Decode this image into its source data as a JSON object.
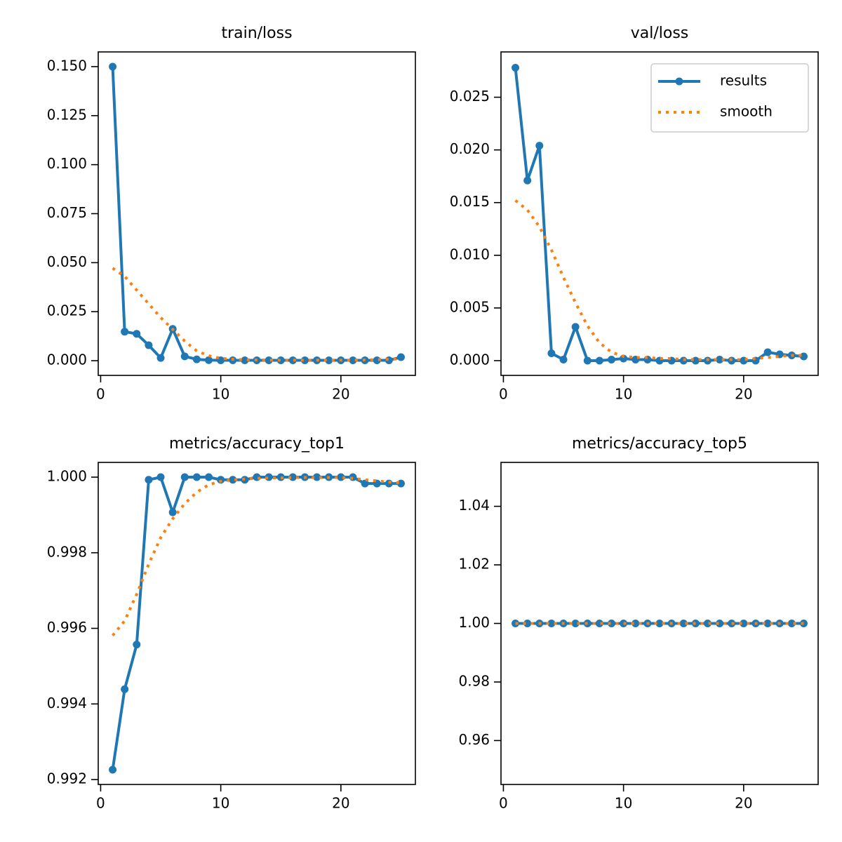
{
  "chart_data": [
    {
      "type": "line",
      "title": "train/loss",
      "x": [
        1,
        2,
        3,
        4,
        5,
        6,
        7,
        8,
        9,
        10,
        11,
        12,
        13,
        14,
        15,
        16,
        17,
        18,
        19,
        20,
        21,
        22,
        23,
        24,
        25
      ],
      "xlim": [
        -0.2,
        26.2
      ],
      "xticks": [
        0,
        10,
        20
      ],
      "ylim": [
        -0.0075,
        0.1575
      ],
      "yticks": [
        {
          "value": 0,
          "label": "0.000"
        },
        0.025,
        {
          "value": 0.05,
          "label": "0.050"
        },
        0.075,
        {
          "value": 0.1,
          "label": "0.100"
        },
        0.125,
        {
          "value": 0.15,
          "label": "0.150"
        }
      ],
      "series": [
        {
          "color": "#1f77b4",
          "linestyle": "solid",
          "marker": "o",
          "values": [
            0.15,
            0.0148,
            0.0137,
            0.0079,
            0.0014,
            0.0162,
            0.0022,
            0.0007,
            0.0003,
            0.0002,
            0.0002,
            0.0002,
            0.0002,
            0.0002,
            0.0002,
            0.0002,
            0.0002,
            0.0002,
            0.0002,
            0.0002,
            0.0002,
            0.0002,
            0.0002,
            0.0002,
            0.0018
          ]
        },
        {
          "color": "#ff7f0e",
          "linestyle": "dotted",
          "values": [
            0.0472,
            0.043,
            0.036,
            0.029,
            0.022,
            0.016,
            0.01,
            0.005,
            0.0025,
            0.0012,
            0.0007,
            0.0005,
            0.0004,
            0.0003,
            0.0003,
            0.0003,
            0.0003,
            0.0003,
            0.0003,
            0.0003,
            0.0003,
            0.0004,
            0.0005,
            0.0007,
            0.001
          ]
        }
      ]
    },
    {
      "type": "line",
      "title": "val/loss",
      "x": [
        1,
        2,
        3,
        4,
        5,
        6,
        7,
        8,
        9,
        10,
        11,
        12,
        13,
        14,
        15,
        16,
        17,
        18,
        19,
        20,
        21,
        22,
        23,
        24,
        25
      ],
      "xlim": [
        -0.2,
        26.2
      ],
      "xticks": [
        0,
        10,
        20
      ],
      "ylim": [
        -0.0014,
        0.0293
      ],
      "yticks": [
        {
          "value": 0,
          "label": "0.000"
        },
        0.005,
        {
          "value": 0.01,
          "label": "0.010"
        },
        0.015,
        {
          "value": 0.02,
          "label": "0.020"
        },
        0.025
      ],
      "legend": "upper right",
      "series": [
        {
          "name": "results",
          "color": "#1f77b4",
          "linestyle": "solid",
          "marker": "o",
          "values": [
            0.0278,
            0.0171,
            0.0204,
            0.0007,
            0.0001,
            0.0032,
            0.0,
            0.0,
            0.0001,
            0.0002,
            0.0001,
            0.0001,
            0.0,
            0.0,
            0.0,
            0.0,
            0.0,
            0.0001,
            0.0,
            0.0,
            0.0,
            0.0008,
            0.0006,
            0.0005,
            0.0004
          ]
        },
        {
          "name": "smooth",
          "color": "#ff7f0e",
          "linestyle": "dotted",
          "values": [
            0.0152,
            0.0143,
            0.0127,
            0.0105,
            0.0079,
            0.0055,
            0.0033,
            0.0017,
            0.0008,
            0.0004,
            0.0003,
            0.0003,
            0.0002,
            0.0002,
            0.0001,
            0.0001,
            0.0001,
            0.0001,
            0.0001,
            0.0001,
            0.0002,
            0.0003,
            0.0004,
            0.0005,
            0.0005
          ]
        }
      ]
    },
    {
      "type": "line",
      "title": "metrics/accuracy_top1",
      "x": [
        1,
        2,
        3,
        4,
        5,
        6,
        7,
        8,
        9,
        10,
        11,
        12,
        13,
        14,
        15,
        16,
        17,
        18,
        19,
        20,
        21,
        22,
        23,
        24,
        25
      ],
      "xlim": [
        -0.2,
        26.2
      ],
      "xticks": [
        0,
        10,
        20
      ],
      "ylim": [
        0.99187,
        1.00039
      ],
      "yticks": [
        0.992,
        0.994,
        0.996,
        0.998,
        {
          "value": 1,
          "label": "1.000"
        }
      ],
      "series": [
        {
          "color": "#1f77b4",
          "linestyle": "solid",
          "marker": "o",
          "values": [
            0.99226,
            0.99439,
            0.99557,
            0.99993,
            1.0,
            0.99907,
            1.0,
            1.0,
            1.0,
            0.99993,
            0.99993,
            0.99993,
            1.0,
            1.0,
            1.0,
            1.0,
            1.0,
            1.0,
            1.0,
            1.0,
            1.0,
            0.99983,
            0.99983,
            0.99983,
            0.99983
          ]
        },
        {
          "color": "#ff7f0e",
          "linestyle": "dotted",
          "values": [
            0.99581,
            0.9962,
            0.9969,
            0.9977,
            0.9984,
            0.9989,
            0.9993,
            0.9996,
            0.9998,
            0.99989,
            0.99993,
            0.99995,
            0.99997,
            0.99998,
            0.99998,
            0.99999,
            0.99999,
            0.99999,
            0.99999,
            0.99999,
            0.99997,
            0.99993,
            0.9999,
            0.99987,
            0.99985
          ]
        }
      ]
    },
    {
      "type": "line",
      "title": "metrics/accuracy_top5",
      "x": [
        1,
        2,
        3,
        4,
        5,
        6,
        7,
        8,
        9,
        10,
        11,
        12,
        13,
        14,
        15,
        16,
        17,
        18,
        19,
        20,
        21,
        22,
        23,
        24,
        25
      ],
      "xlim": [
        -0.2,
        26.2
      ],
      "xticks": [
        0,
        10,
        20
      ],
      "ylim": [
        0.945,
        1.055
      ],
      "yticks": [
        0.96,
        0.98,
        {
          "value": 1,
          "label": "1.00"
        },
        1.02,
        1.04
      ],
      "series": [
        {
          "color": "#1f77b4",
          "linestyle": "solid",
          "marker": "o",
          "values": [
            1,
            1,
            1,
            1,
            1,
            1,
            1,
            1,
            1,
            1,
            1,
            1,
            1,
            1,
            1,
            1,
            1,
            1,
            1,
            1,
            1,
            1,
            1,
            1,
            1
          ]
        },
        {
          "color": "#ff7f0e",
          "linestyle": "dotted",
          "values": [
            1,
            1,
            1,
            1,
            1,
            1,
            1,
            1,
            1,
            1,
            1,
            1,
            1,
            1,
            1,
            1,
            1,
            1,
            1,
            1,
            1,
            1,
            1,
            1,
            1
          ]
        }
      ]
    }
  ]
}
